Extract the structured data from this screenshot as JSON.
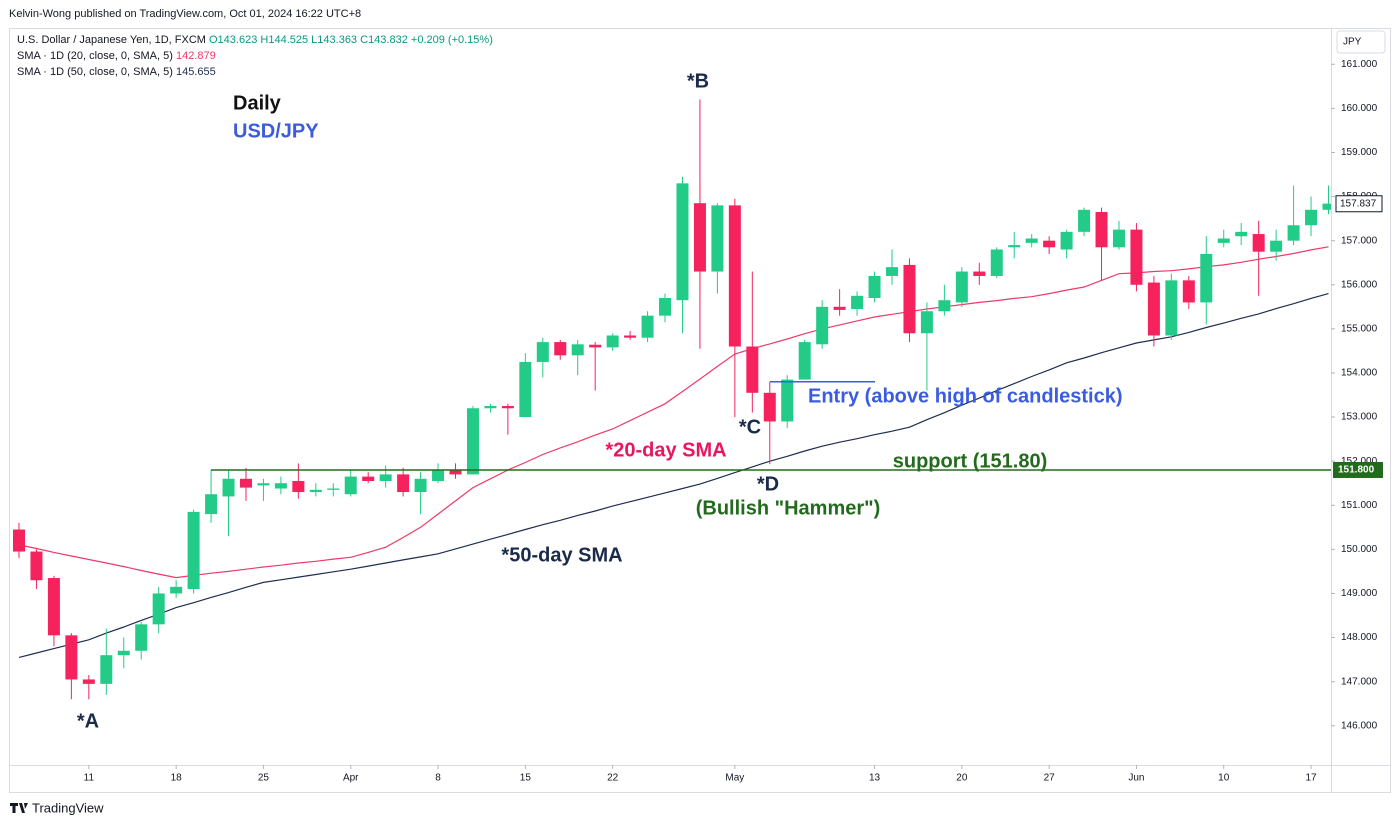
{
  "chart_data": {
    "type": "candlestick",
    "credit": "Kelvin-Wong published on TradingView.com, Oct 01, 2024 16:22 UTC+8",
    "brand": "TradingView",
    "currency": "JPY",
    "symbol": "U.S. Dollar / Japanese Yen, 1D, FXCM",
    "ohlc_header": [
      "O143.623",
      "H144.525",
      "L143.363",
      "C143.832",
      "+0.209 (+0.15%)"
    ],
    "up_color": "#22cc88",
    "down_color": "#f5225e",
    "categories": [
      null,
      null,
      null,
      null,
      "11",
      null,
      null,
      null,
      null,
      "18",
      null,
      null,
      null,
      null,
      "25",
      null,
      null,
      null,
      null,
      "Apr",
      null,
      null,
      null,
      null,
      "8",
      null,
      null,
      null,
      null,
      "15",
      null,
      null,
      null,
      null,
      "22",
      null,
      null,
      null,
      null,
      null,
      null,
      "May",
      null,
      null,
      null,
      null,
      null,
      null,
      null,
      "13",
      null,
      null,
      null,
      null,
      "20",
      null,
      null,
      null,
      null,
      "27",
      null,
      null,
      null,
      null,
      "Jun",
      null,
      null,
      null,
      null,
      "10",
      null,
      null,
      null,
      null,
      "17",
      null
    ],
    "open": [
      150.45,
      149.95,
      149.35,
      148.05,
      147.05,
      146.95,
      147.6,
      147.7,
      148.3,
      149.0,
      149.1,
      150.8,
      151.2,
      151.6,
      151.45,
      151.38,
      151.55,
      151.3,
      151.35,
      151.25,
      151.65,
      151.55,
      151.7,
      151.3,
      151.55,
      151.8,
      151.7,
      153.2,
      153.25,
      153.0,
      154.25,
      154.7,
      154.4,
      154.64,
      154.58,
      154.85,
      154.8,
      155.3,
      155.65,
      157.85,
      156.3,
      157.8,
      154.6,
      153.55,
      152.9,
      153.85,
      154.65,
      155.5,
      155.45,
      155.7,
      156.2,
      156.45,
      154.9,
      155.4,
      155.6,
      156.3,
      156.2,
      156.85,
      156.95,
      157.0,
      156.8,
      157.2,
      157.65,
      156.85,
      157.25,
      156.05,
      154.85,
      156.1,
      155.6,
      156.95,
      157.1,
      157.15,
      156.75,
      157.0,
      157.35,
      157.7
    ],
    "high": [
      150.6,
      150.0,
      149.4,
      148.1,
      147.15,
      148.2,
      148.0,
      148.35,
      149.15,
      149.3,
      150.9,
      151.8,
      151.8,
      151.85,
      151.6,
      151.65,
      151.95,
      151.5,
      151.5,
      151.8,
      151.75,
      151.9,
      151.85,
      151.75,
      151.95,
      151.95,
      153.25,
      153.3,
      153.3,
      154.45,
      154.8,
      154.75,
      154.75,
      154.7,
      154.9,
      154.95,
      155.4,
      155.8,
      158.45,
      160.2,
      157.85,
      157.95,
      156.3,
      153.8,
      153.95,
      154.75,
      155.65,
      155.9,
      155.85,
      156.3,
      156.8,
      156.6,
      155.6,
      156.0,
      156.4,
      156.5,
      156.85,
      157.2,
      157.15,
      157.1,
      157.25,
      157.75,
      157.75,
      157.45,
      157.4,
      156.2,
      156.25,
      156.2,
      157.1,
      157.25,
      157.4,
      157.45,
      157.25,
      158.25,
      158.0,
      158.25
    ],
    "low": [
      149.8,
      149.1,
      147.8,
      146.6,
      146.6,
      146.7,
      147.3,
      147.5,
      148.1,
      148.9,
      149.0,
      150.6,
      150.3,
      151.1,
      151.1,
      151.25,
      151.15,
      151.2,
      151.2,
      151.2,
      151.5,
      151.4,
      151.2,
      150.8,
      151.5,
      151.6,
      151.7,
      153.1,
      152.6,
      153.0,
      153.9,
      154.3,
      153.95,
      153.6,
      154.5,
      154.75,
      154.7,
      155.15,
      154.9,
      154.55,
      155.8,
      153.0,
      153.1,
      151.93,
      152.75,
      153.85,
      154.55,
      155.3,
      155.3,
      155.6,
      156.0,
      154.7,
      153.6,
      155.3,
      155.5,
      156.0,
      156.15,
      156.6,
      156.85,
      156.7,
      156.6,
      157.1,
      156.1,
      156.8,
      155.85,
      154.6,
      154.75,
      155.45,
      155.1,
      156.85,
      156.9,
      155.75,
      156.55,
      156.9,
      157.1,
      157.6
    ],
    "close": [
      149.95,
      149.3,
      148.05,
      147.05,
      146.95,
      147.6,
      147.7,
      148.3,
      149.0,
      149.15,
      150.85,
      151.25,
      151.6,
      151.4,
      151.5,
      151.5,
      151.3,
      151.35,
      151.38,
      151.65,
      151.55,
      151.7,
      151.3,
      151.6,
      151.8,
      151.7,
      153.2,
      153.25,
      153.2,
      154.25,
      154.7,
      154.4,
      154.65,
      154.58,
      154.85,
      154.8,
      155.3,
      155.7,
      158.3,
      156.3,
      157.8,
      154.6,
      153.55,
      152.9,
      153.85,
      154.7,
      155.5,
      155.43,
      155.75,
      156.2,
      156.4,
      154.9,
      155.4,
      155.65,
      156.3,
      156.2,
      156.8,
      156.9,
      157.05,
      156.85,
      157.2,
      157.7,
      156.85,
      157.25,
      156.0,
      154.85,
      156.1,
      155.6,
      156.7,
      157.05,
      157.2,
      156.75,
      157.0,
      157.35,
      157.7,
      157.84
    ],
    "series": [
      {
        "name": "SMA · 1D (20, close, 0, SMA, 5)",
        "legend_value": 142.879,
        "color": "#ee3a68",
        "values": [
          150.1,
          150.02,
          149.93,
          149.85,
          149.77,
          149.69,
          149.61,
          149.52,
          149.44,
          149.36,
          149.41,
          149.46,
          149.5,
          149.55,
          149.6,
          149.64,
          149.69,
          149.73,
          149.78,
          149.82,
          149.93,
          150.05,
          150.27,
          150.5,
          150.8,
          151.1,
          151.4,
          151.6,
          151.8,
          151.97,
          152.15,
          152.3,
          152.44,
          152.59,
          152.73,
          152.92,
          153.11,
          153.3,
          153.58,
          153.86,
          154.15,
          154.43,
          154.55,
          154.66,
          154.77,
          154.89,
          155.0,
          155.09,
          155.18,
          155.27,
          155.33,
          155.39,
          155.45,
          155.5,
          155.55,
          155.6,
          155.64,
          155.69,
          155.73,
          155.8,
          155.88,
          155.95,
          156.1,
          156.25,
          156.27,
          156.3,
          156.32,
          156.36,
          156.41,
          156.45,
          156.51,
          156.58,
          156.64,
          156.71,
          156.79,
          156.86
        ]
      },
      {
        "name": "SMA · 1D (50, close, 0, SMA, 5)",
        "legend_value": 145.655,
        "color": "#1f2d50",
        "values": [
          147.55,
          147.65,
          147.75,
          147.85,
          147.95,
          148.1,
          148.24,
          148.39,
          148.53,
          148.68,
          148.79,
          148.91,
          149.02,
          149.14,
          149.25,
          149.31,
          149.37,
          149.43,
          149.49,
          149.55,
          149.62,
          149.69,
          149.76,
          149.83,
          149.9,
          150.01,
          150.12,
          150.23,
          150.34,
          150.45,
          150.56,
          150.66,
          150.77,
          150.87,
          150.98,
          151.08,
          151.18,
          151.28,
          151.38,
          151.48,
          151.61,
          151.74,
          151.87,
          152.0,
          152.11,
          152.23,
          152.34,
          152.43,
          152.51,
          152.6,
          152.68,
          152.77,
          152.94,
          153.1,
          153.27,
          153.43,
          153.6,
          153.76,
          153.92,
          154.07,
          154.23,
          154.34,
          154.46,
          154.57,
          154.68,
          154.75,
          154.82,
          154.92,
          155.03,
          155.13,
          155.24,
          155.34,
          155.46,
          155.57,
          155.69,
          155.8
        ]
      }
    ],
    "ylim": [
      145.11,
      161.8
    ],
    "yticks": [
      {
        "value": 146,
        "label": "146.000"
      },
      {
        "value": 147,
        "label": "147.000"
      },
      {
        "value": 148,
        "label": "148.000"
      },
      {
        "value": 149,
        "label": "149.000"
      },
      {
        "value": 150,
        "label": "150.000"
      },
      {
        "value": 151,
        "label": "151.000"
      },
      {
        "value": 152,
        "label": "152.000"
      },
      {
        "value": 153,
        "label": "153.000"
      },
      {
        "value": 154,
        "label": "154.000"
      },
      {
        "value": 155,
        "label": "155.000"
      },
      {
        "value": 156,
        "label": "156.000"
      },
      {
        "value": 157,
        "label": "157.000"
      },
      {
        "value": 158,
        "label": "158.000"
      },
      {
        "value": 159,
        "label": "159.000"
      },
      {
        "value": 160,
        "label": "160.000"
      },
      {
        "value": 161,
        "label": "161.000"
      }
    ],
    "last_price": {
      "value": 157.837,
      "label": "157.837"
    },
    "support": {
      "value": 151.8,
      "axis_label": "151.800",
      "label": "support (151.80)",
      "color": "#236b1c"
    },
    "entry": {
      "value": 153.8,
      "label": "Entry (above high of candlestick)",
      "color": "#3b5be0"
    },
    "annotations": [
      {
        "text": "Daily",
        "color": "#111111"
      },
      {
        "text": "USD/JPY",
        "color": "#3b5be0"
      },
      {
        "text": "*A",
        "color": "#1a2a4a"
      },
      {
        "text": "*B",
        "color": "#1a2a4a"
      },
      {
        "text": "*C",
        "color": "#1a2a4a"
      },
      {
        "text": "*D",
        "color": "#1a2a4a"
      },
      {
        "text": "(Bullish \"Hammer\")",
        "color": "#236b1c"
      },
      {
        "text": "*20-day SMA",
        "color": "#e8175d"
      },
      {
        "text": "*50-day SMA",
        "color": "#1a2a4a"
      }
    ]
  }
}
